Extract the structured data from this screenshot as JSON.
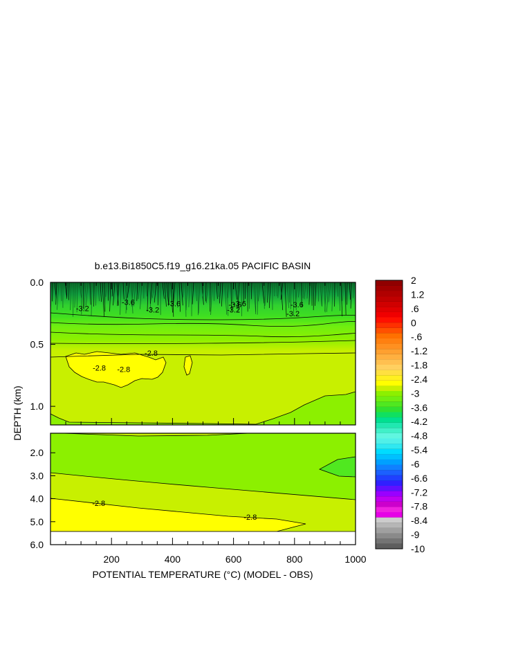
{
  "chart_data": {
    "type": "heatmap",
    "title": "b.e13.Bi1850C5.f19_g16.21ka.05 PACIFIC BASIN",
    "xlabel": "POTENTIAL TEMPERATURE (°C) (MODEL - OBS)",
    "ylabel": "DEPTH (km)",
    "x_ticks": [
      "200",
      "400",
      "600",
      "800",
      "1000"
    ],
    "xlim": [
      0,
      1000
    ],
    "upper_panel": {
      "ylim": [
        0.0,
        1.15
      ],
      "y_ticks": [
        "0.0",
        "0.5",
        "1.0"
      ]
    },
    "lower_panel": {
      "ylim": [
        1.15,
        6.0
      ],
      "y_ticks": [
        "2.0",
        "3.0",
        "4.0",
        "5.0",
        "6.0"
      ]
    },
    "contour_labels": [
      {
        "text": "-3.6",
        "x": 255,
        "y": 0.16
      },
      {
        "text": "-3.6",
        "x": 405,
        "y": 0.17
      },
      {
        "text": "-3.6",
        "x": 620,
        "y": 0.17
      },
      {
        "text": "-3.6",
        "x": 808,
        "y": 0.18
      },
      {
        "text": "-3.2",
        "x": 105,
        "y": 0.21
      },
      {
        "text": "-3.2",
        "x": 335,
        "y": 0.22
      },
      {
        "text": "-3.2",
        "x": 600,
        "y": 0.22
      },
      {
        "text": "-3.2",
        "x": 795,
        "y": 0.25
      },
      {
        "text": "-3.6",
        "x": 605,
        "y": 0.18
      },
      {
        "text": "-2.8",
        "x": 160,
        "y": 0.69
      },
      {
        "text": "-2.8",
        "x": 240,
        "y": 0.7
      },
      {
        "text": "-2.8",
        "x": 330,
        "y": 0.57
      },
      {
        "text": "-2.8",
        "x": 158,
        "y": 4.2
      },
      {
        "text": "-2.8",
        "x": 655,
        "y": 4.8
      }
    ],
    "colorbar": {
      "tick_labels": [
        "2",
        "1.2",
        ".6",
        "0",
        "-.6",
        "-1.2",
        "-1.8",
        "-2.4",
        "-3",
        "-3.6",
        "-4.2",
        "-4.8",
        "-5.4",
        "-6",
        "-6.6",
        "-7.2",
        "-7.8",
        "-8.4",
        "-9",
        "-10"
      ],
      "colors": [
        "#5e5e5e",
        "#747474",
        "#8a8a8a",
        "#a0a0a0",
        "#b6b6b6",
        "#cccccc",
        "#e600e6",
        "#f020e0",
        "#cc00cc",
        "#c000f0",
        "#9a00ff",
        "#6010ff",
        "#3020ff",
        "#2040ff",
        "#1c60ff",
        "#1080ff",
        "#00a0ff",
        "#00c0ff",
        "#00dcff",
        "#30e8f0",
        "#50f0e8",
        "#60f6e0",
        "#40f0c8",
        "#20e8b0",
        "#00e090",
        "#10e060",
        "#30e030",
        "#50e820",
        "#70ee10",
        "#8cf000",
        "#c8f000",
        "#ffff00",
        "#fff020",
        "#ffe040",
        "#ffd060",
        "#ffc050",
        "#ffb040",
        "#ffa030",
        "#ff9020",
        "#ff8010",
        "#ff7000",
        "#ff5000",
        "#ff3000",
        "#ff1000",
        "#f00000",
        "#e00000",
        "#d00000",
        "#c00000",
        "#b00000",
        "#a00000",
        "#900000"
      ]
    }
  }
}
